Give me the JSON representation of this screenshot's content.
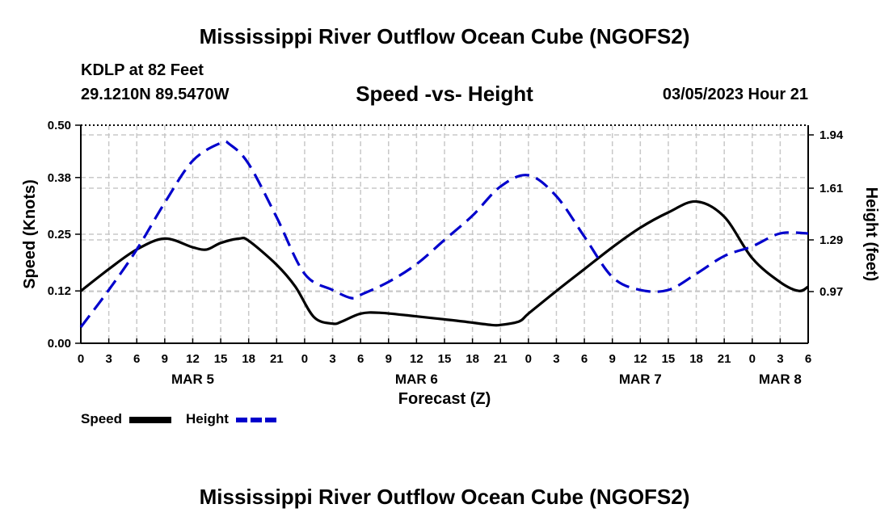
{
  "header": {
    "title": "Mississippi River Outflow Ocean Cube (NGOFS2)",
    "station": "KDLP at 82 Feet",
    "coords": "29.1210N  89.5470W",
    "subtitle": "Speed -vs- Height",
    "datetime": "03/05/2023 Hour 21"
  },
  "footer": {
    "title": "Mississippi River Outflow Ocean Cube (NGOFS2)"
  },
  "chart_data": {
    "type": "line",
    "xlabel": "Forecast (Z)",
    "x_hours_range": [
      0,
      78
    ],
    "x_tick_labels": [
      "0",
      "3",
      "6",
      "9",
      "12",
      "15",
      "18",
      "21",
      "0",
      "3",
      "6",
      "9",
      "12",
      "15",
      "18",
      "21",
      "0",
      "3",
      "6",
      "9",
      "12",
      "15",
      "18",
      "21",
      "0",
      "3",
      "6"
    ],
    "day_labels": [
      {
        "label": "MAR 5",
        "hour": 12
      },
      {
        "label": "MAR 6",
        "hour": 36
      },
      {
        "label": "MAR 7",
        "hour": 60
      },
      {
        "label": "MAR 8",
        "hour": 75
      }
    ],
    "left_axis": {
      "label": "Speed (Knots)",
      "ylim": [
        0,
        0.5
      ],
      "ticks": [
        "0.00",
        "0.12",
        "0.25",
        "0.38",
        "0.50"
      ]
    },
    "right_axis": {
      "label": "Height (feet)",
      "ylim": [
        0.65,
        2.0
      ],
      "ticks": [
        "0.97",
        "1.29",
        "1.61",
        "1.94"
      ]
    },
    "series": [
      {
        "name": "Speed",
        "axis": "left",
        "color": "#000000",
        "dash": "solid",
        "x": [
          0,
          3,
          6,
          9,
          12,
          13.5,
          15,
          17,
          18,
          21,
          23,
          25,
          27,
          28,
          30,
          32,
          35,
          38,
          41,
          44,
          45,
          47,
          48,
          51,
          54,
          57,
          60,
          63,
          66,
          69,
          72,
          75,
          77,
          78
        ],
        "values": [
          0.12,
          0.17,
          0.215,
          0.24,
          0.22,
          0.215,
          0.23,
          0.24,
          0.235,
          0.18,
          0.13,
          0.06,
          0.045,
          0.05,
          0.068,
          0.07,
          0.064,
          0.057,
          0.05,
          0.042,
          0.042,
          0.05,
          0.068,
          0.12,
          0.17,
          0.22,
          0.265,
          0.3,
          0.325,
          0.29,
          0.195,
          0.14,
          0.12,
          0.13
        ]
      },
      {
        "name": "Height",
        "axis": "right",
        "color": "#0000CC",
        "dash": "dashed",
        "x": [
          0,
          3,
          6,
          9,
          12,
          15,
          16,
          18,
          21,
          24,
          27,
          29,
          30,
          33,
          36,
          39,
          42,
          45,
          48,
          51,
          54,
          57,
          60,
          63,
          66,
          69,
          72,
          75,
          78
        ],
        "values": [
          0.75,
          0.98,
          1.23,
          1.52,
          1.78,
          1.89,
          1.88,
          1.76,
          1.43,
          1.08,
          0.98,
          0.93,
          0.95,
          1.03,
          1.14,
          1.29,
          1.44,
          1.62,
          1.69,
          1.56,
          1.31,
          1.06,
          0.98,
          0.98,
          1.08,
          1.19,
          1.25,
          1.33,
          1.33
        ]
      }
    ],
    "legend": [
      {
        "label": "Speed",
        "color": "#000000"
      },
      {
        "label": "Height",
        "color": "#0000CC"
      }
    ],
    "grid": true
  }
}
